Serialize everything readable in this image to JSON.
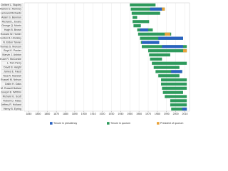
{
  "chart_data": {
    "type": "timeline",
    "categories": [
      "Delbert L. Stapley",
      "Marion G. Romney",
      "LeGrand Richards",
      "Adam S. Bennion",
      "Richard L. Evans",
      "George Q. Morris",
      "Hugh B. Brown",
      "Howard W. Hunter",
      "Gordon B. Hinckley",
      "N. Eldon Tanner",
      "Thomas S. Monson",
      "Boyd K. Packer",
      "Marvin J. Ashton",
      "Bruce R. McConkie",
      "L. Tom Perry",
      "David B. Haight",
      "James E. Faust",
      "Neal A. Maxwell",
      "Russell M. Nelson",
      "Dallin H. Oaks",
      "M. Russell Ballard",
      "Joseph B. Wirthlin",
      "Richard G. Scott",
      "Robert D. Hales",
      "Jeffrey R. Holland",
      "Henry B. Eyring"
    ],
    "series": [
      {
        "name": "Tenure in quorum",
        "color": "#2e9a5c",
        "values": [
          [
            1950,
            1978
          ],
          [
            1951,
            1988
          ],
          [
            1952,
            1983
          ],
          [
            1953,
            1958
          ],
          [
            1953,
            1971
          ],
          [
            1954,
            1962
          ],
          [
            1958,
            1975
          ],
          [
            1959,
            1995
          ],
          [
            1961,
            2008
          ],
          [
            1962,
            1982
          ],
          [
            1963,
            2012
          ],
          [
            1970,
            2012
          ],
          [
            1971,
            1994
          ],
          [
            1972,
            1985
          ],
          [
            1974,
            2012
          ],
          [
            1976,
            2004
          ],
          [
            1978,
            2007
          ],
          [
            1981,
            2004
          ],
          [
            1984,
            2012
          ],
          [
            1984,
            2012
          ],
          [
            1985,
            2012
          ],
          [
            1986,
            2008
          ],
          [
            1988,
            2012
          ],
          [
            1994,
            2012
          ],
          [
            1994,
            2012
          ],
          [
            1995,
            2012
          ]
        ]
      },
      {
        "name": "Tenure in presidency",
        "color": "#2a62c0",
        "values": [
          null,
          [
            1972,
            1985
          ],
          null,
          null,
          null,
          null,
          [
            1961,
            1970
          ],
          null,
          [
            1981,
            2008
          ],
          [
            1963,
            1982
          ],
          [
            1985,
            2008
          ],
          null,
          null,
          null,
          null,
          null,
          [
            1995,
            2007
          ],
          null,
          null,
          null,
          null,
          null,
          null,
          null,
          null,
          [
            2007,
            2012
          ]
        ]
      },
      {
        "name": "President of quorum",
        "color": "#e8a23a",
        "values": [
          null,
          [
            1985,
            1988
          ],
          null,
          null,
          null,
          null,
          null,
          [
            1988,
            1994
          ],
          null,
          null,
          null,
          [
            2008,
            2012
          ],
          null,
          null,
          null,
          null,
          null,
          null,
          null,
          null,
          null,
          null,
          null,
          null,
          null,
          null
        ]
      }
    ],
    "xlim": [
      1835,
      2015
    ],
    "xticks": [
      1840,
      1850,
      1860,
      1870,
      1880,
      1890,
      1900,
      1910,
      1920,
      1930,
      1940,
      1950,
      1960,
      1970,
      1980,
      1990,
      2000,
      2010
    ],
    "grid": true
  }
}
